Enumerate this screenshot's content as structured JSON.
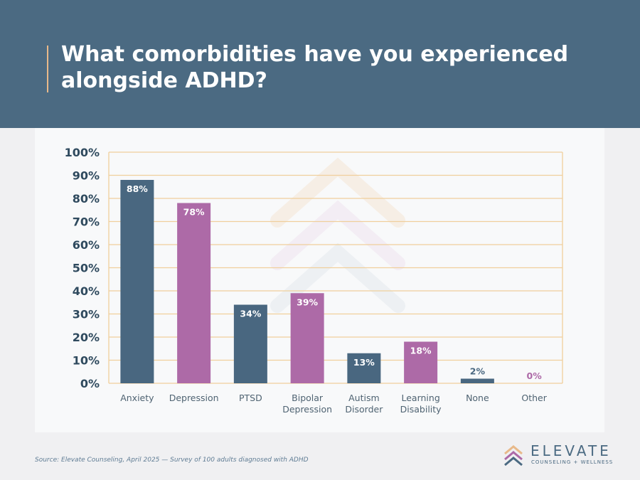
{
  "header": {
    "title": "What comorbidities have you experienced alongside ADHD?"
  },
  "chart_data": {
    "type": "bar",
    "categories": [
      "Anxiety",
      "Depression",
      "PTSD",
      "Bipolar Depression",
      "Autism Disorder",
      "Learning Disability",
      "None",
      "Other"
    ],
    "values": [
      88,
      78,
      34,
      39,
      13,
      18,
      2,
      0
    ],
    "data_labels": [
      "88%",
      "78%",
      "34%",
      "39%",
      "13%",
      "18%",
      "2%",
      "0%"
    ],
    "y_ticks": [
      "0%",
      "10%",
      "20%",
      "30%",
      "40%",
      "50%",
      "60%",
      "70%",
      "80%",
      "90%",
      "100%"
    ],
    "ylim": [
      0,
      100
    ],
    "grid": true,
    "colors": [
      "#496780",
      "#ad6aa7"
    ]
  },
  "footer": {
    "source": "Source: Elevate Counseling, April 2025 — Survey of 100 adults diagnosed with ADHD"
  },
  "logo": {
    "name": "ELEVATE",
    "tagline": "COUNSELING + WELLNESS"
  }
}
